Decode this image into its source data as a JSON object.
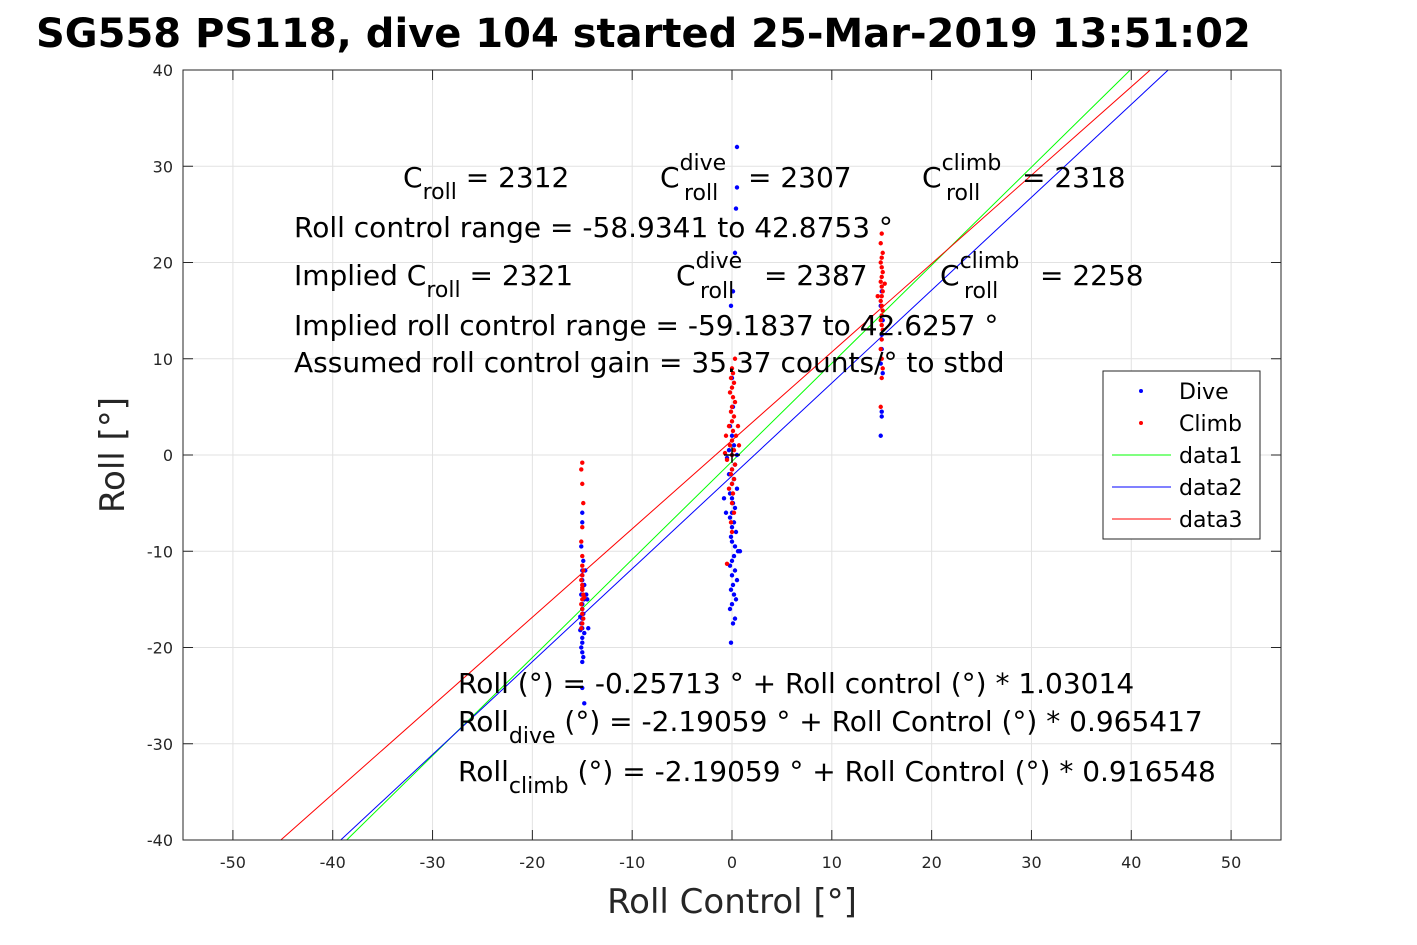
{
  "chart_data": {
    "type": "scatter",
    "title": "SG558 PS118, dive 104 started 25-Mar-2019 13:51:02",
    "xlabel": "Roll Control [°]",
    "ylabel": "Roll [°]",
    "xlim": [
      -55,
      55
    ],
    "ylim": [
      -40,
      40
    ],
    "xticks": [
      -50,
      -40,
      -30,
      -20,
      -10,
      0,
      10,
      20,
      30,
      40,
      50
    ],
    "yticks": [
      -40,
      -30,
      -20,
      -10,
      0,
      10,
      20,
      30,
      40
    ],
    "grid": true,
    "legend_position": "right",
    "legend": [
      "Dive",
      "Climb",
      "data1",
      "data2",
      "data3"
    ],
    "series": [
      {
        "name": "Dive",
        "kind": "points",
        "color": "#0000ff",
        "points": [
          [
            -15.0,
            -6.0
          ],
          [
            -15.0,
            -7.0
          ],
          [
            -15.1,
            -9.5
          ],
          [
            -14.9,
            -11.0
          ],
          [
            -15.0,
            -12.0
          ],
          [
            -15.0,
            -12.5
          ],
          [
            -15.0,
            -13.0
          ],
          [
            -14.8,
            -13.5
          ],
          [
            -15.0,
            -14.0
          ],
          [
            -15.1,
            -14.5
          ],
          [
            -14.8,
            -15.0
          ],
          [
            -15.0,
            -15.5
          ],
          [
            -15.0,
            -16.0
          ],
          [
            -14.9,
            -16.5
          ],
          [
            -15.0,
            -17.0
          ],
          [
            -15.1,
            -17.5
          ],
          [
            -15.0,
            -18.0
          ],
          [
            -14.8,
            -18.5
          ],
          [
            -15.0,
            -19.0
          ],
          [
            -15.0,
            -19.5
          ],
          [
            -15.1,
            -20.0
          ],
          [
            -15.0,
            -20.5
          ],
          [
            -14.9,
            -21.0
          ],
          [
            -15.0,
            -21.5
          ],
          [
            -14.6,
            -14.5
          ],
          [
            -14.5,
            -15.0
          ],
          [
            -14.4,
            -18.0
          ],
          [
            -14.7,
            -12.0
          ],
          [
            -15.0,
            -24.2
          ],
          [
            -14.8,
            -25.8
          ],
          [
            -15.2,
            -16.8
          ],
          [
            -15.2,
            -18.2
          ],
          [
            0.5,
            32.0
          ],
          [
            0.5,
            27.8
          ],
          [
            0.4,
            25.6
          ],
          [
            0.3,
            21.0
          ],
          [
            0.1,
            17.0
          ],
          [
            -0.1,
            15.5
          ],
          [
            0.0,
            8.0
          ],
          [
            0.1,
            5.0
          ],
          [
            -0.2,
            3.0
          ],
          [
            0.0,
            2.0
          ],
          [
            0.2,
            1.0
          ],
          [
            -0.3,
            0.5
          ],
          [
            0.0,
            0.0
          ],
          [
            0.5,
            0.0
          ],
          [
            -0.5,
            -0.3
          ],
          [
            0.3,
            -1.0
          ],
          [
            0.0,
            -1.5
          ],
          [
            -0.3,
            -2.0
          ],
          [
            0.2,
            -2.5
          ],
          [
            0.0,
            -3.0
          ],
          [
            0.5,
            -3.5
          ],
          [
            -0.2,
            -4.0
          ],
          [
            0.0,
            -4.5
          ],
          [
            -0.8,
            -4.5
          ],
          [
            0.1,
            -5.0
          ],
          [
            0.3,
            -5.5
          ],
          [
            0.0,
            -6.0
          ],
          [
            -0.2,
            -6.5
          ],
          [
            0.2,
            -7.0
          ],
          [
            0.0,
            -7.5
          ],
          [
            0.4,
            -8.0
          ],
          [
            -0.1,
            -8.5
          ],
          [
            0.0,
            -9.0
          ],
          [
            0.3,
            -9.5
          ],
          [
            0.6,
            -10.0
          ],
          [
            0.2,
            -10.5
          ],
          [
            0.0,
            -11.0
          ],
          [
            -0.2,
            -11.5
          ],
          [
            0.3,
            -12.0
          ],
          [
            0.0,
            -12.5
          ],
          [
            0.5,
            -13.0
          ],
          [
            0.1,
            -13.5
          ],
          [
            -0.1,
            -14.0
          ],
          [
            0.2,
            -14.5
          ],
          [
            0.4,
            -15.0
          ],
          [
            0.0,
            -15.5
          ],
          [
            -0.2,
            -16.0
          ],
          [
            0.3,
            -17.0
          ],
          [
            0.1,
            -17.5
          ],
          [
            -0.1,
            -19.5
          ],
          [
            0.8,
            -10.0
          ],
          [
            -0.6,
            -6.0
          ],
          [
            15.0,
            17.0
          ],
          [
            14.9,
            15.5
          ],
          [
            15.1,
            14.0
          ],
          [
            15.0,
            12.5
          ],
          [
            15.0,
            11.0
          ],
          [
            14.9,
            9.5
          ],
          [
            15.1,
            8.5
          ],
          [
            15.0,
            4.5
          ],
          [
            15.0,
            4.0
          ],
          [
            14.9,
            2.0
          ]
        ]
      },
      {
        "name": "Climb",
        "kind": "points",
        "color": "#ff0000",
        "points": [
          [
            -15.0,
            -0.8
          ],
          [
            -15.1,
            -1.5
          ],
          [
            -15.0,
            -3.0
          ],
          [
            -14.9,
            -5.0
          ],
          [
            -15.0,
            -7.5
          ],
          [
            -15.1,
            -9.0
          ],
          [
            -15.0,
            -10.5
          ],
          [
            -15.0,
            -11.5
          ],
          [
            -14.9,
            -12.0
          ],
          [
            -15.0,
            -12.5
          ],
          [
            -15.1,
            -13.0
          ],
          [
            -15.0,
            -13.5
          ],
          [
            -15.0,
            -14.0
          ],
          [
            -14.9,
            -14.5
          ],
          [
            -15.0,
            -15.0
          ],
          [
            -15.1,
            -15.5
          ],
          [
            -15.0,
            -16.0
          ],
          [
            -15.0,
            -16.5
          ],
          [
            -14.9,
            -17.0
          ],
          [
            -15.0,
            -17.5
          ],
          [
            -15.1,
            -18.0
          ],
          [
            -15.0,
            -13.8
          ],
          [
            -14.8,
            -14.8
          ],
          [
            0.0,
            9.0
          ],
          [
            0.1,
            8.5
          ],
          [
            -0.1,
            8.0
          ],
          [
            0.2,
            7.5
          ],
          [
            0.0,
            7.0
          ],
          [
            -0.2,
            6.5
          ],
          [
            0.1,
            6.0
          ],
          [
            0.3,
            5.5
          ],
          [
            0.0,
            5.0
          ],
          [
            -0.1,
            4.5
          ],
          [
            0.2,
            4.0
          ],
          [
            0.0,
            3.5
          ],
          [
            -0.3,
            3.0
          ],
          [
            0.1,
            2.5
          ],
          [
            0.4,
            2.0
          ],
          [
            0.0,
            1.5
          ],
          [
            -0.2,
            1.0
          ],
          [
            0.2,
            0.5
          ],
          [
            0.0,
            0.0
          ],
          [
            -0.5,
            -0.5
          ],
          [
            0.3,
            -1.0
          ],
          [
            0.0,
            -1.5
          ],
          [
            -0.1,
            -2.0
          ],
          [
            0.2,
            -2.5
          ],
          [
            0.0,
            -3.0
          ],
          [
            -0.3,
            -3.5
          ],
          [
            0.1,
            -4.0
          ],
          [
            0.0,
            -5.0
          ],
          [
            0.2,
            -6.0
          ],
          [
            -0.1,
            -7.0
          ],
          [
            0.0,
            -8.0
          ],
          [
            -0.5,
            -11.3
          ],
          [
            0.3,
            10.0
          ],
          [
            0.6,
            3.0
          ],
          [
            -0.6,
            2.0
          ],
          [
            0.7,
            1.0
          ],
          [
            -0.7,
            0.2
          ],
          [
            15.0,
            23.0
          ],
          [
            14.9,
            22.0
          ],
          [
            15.1,
            21.0
          ],
          [
            15.0,
            20.5
          ],
          [
            14.9,
            20.0
          ],
          [
            15.0,
            19.5
          ],
          [
            15.1,
            19.0
          ],
          [
            15.0,
            18.5
          ],
          [
            14.9,
            18.0
          ],
          [
            15.0,
            17.5
          ],
          [
            15.1,
            17.0
          ],
          [
            15.0,
            16.5
          ],
          [
            14.9,
            16.0
          ],
          [
            15.0,
            15.5
          ],
          [
            15.1,
            15.0
          ],
          [
            15.0,
            14.5
          ],
          [
            14.9,
            14.0
          ],
          [
            15.0,
            13.5
          ],
          [
            15.1,
            13.0
          ],
          [
            15.0,
            12.0
          ],
          [
            14.9,
            11.0
          ],
          [
            15.0,
            10.0
          ],
          [
            15.1,
            9.0
          ],
          [
            15.0,
            8.0
          ],
          [
            14.9,
            5.0
          ],
          [
            14.6,
            16.5
          ],
          [
            15.3,
            17.8
          ]
        ]
      },
      {
        "name": "data1",
        "kind": "line",
        "color": "#00ff00",
        "x": [
          -38.6,
          39.9
        ],
        "y": [
          -40,
          40
        ]
      },
      {
        "name": "data2",
        "kind": "line",
        "color": "#0000ff",
        "x": [
          -39.2,
          43.7
        ],
        "y": [
          -40,
          40
        ]
      },
      {
        "name": "data3",
        "kind": "line",
        "color": "#ff0000",
        "x": [
          -45.2,
          41.9
        ],
        "y": [
          -40,
          40
        ]
      }
    ],
    "annotations": {
      "c_roll": {
        "base": "C",
        "sub": "roll",
        "rest": " = 2312"
      },
      "c_roll_dive": {
        "base": "C",
        "sup": "dive",
        "sub": "roll",
        "rest": " = 2307"
      },
      "c_roll_climb": {
        "base": "C",
        "sup": "climb",
        "sub": "roll",
        "rest": " = 2318"
      },
      "range": "Roll control range = -58.9341 to 42.8753 °",
      "implied_c_roll": {
        "base": "Implied C",
        "sub": "roll",
        "rest": " = 2321"
      },
      "implied_c_roll_dive": {
        "base": "C",
        "sup": "dive",
        "sub": "roll",
        "rest": " = 2387"
      },
      "implied_c_roll_climb": {
        "base": "C",
        "sup": "climb",
        "sub": "roll",
        "rest": " = 2258"
      },
      "implied_range": "Implied roll control range = -59.1837 to 42.6257 °",
      "gain": "Assumed roll control gain = 35.37 counts/° to stbd",
      "fit": "Roll (°) = -0.25713 ° + Roll control (°) * 1.03014",
      "fit_dive": {
        "base": "Roll",
        "sub": "dive",
        "rest": " (°) = -2.19059 ° + Roll Control (°) * 0.965417"
      },
      "fit_climb": {
        "base": "Roll",
        "sub": "climb",
        "rest": " (°) = -2.19059 ° + Roll Control (°) * 0.916548"
      }
    }
  }
}
